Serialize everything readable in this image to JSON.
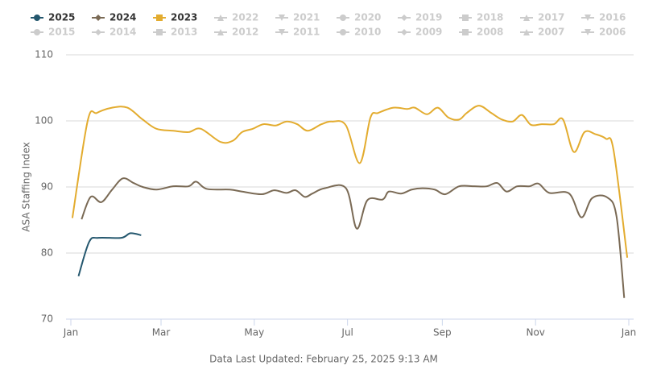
{
  "chart_data": {
    "type": "line",
    "y_label": "ASA Staffing Index",
    "footnote": "Data Last Updated: February 25, 2025 9:13 AM",
    "xlim": [
      0,
      365
    ],
    "xticks": [
      {
        "value": 0,
        "label": "Jan"
      },
      {
        "value": 59,
        "label": "Mar"
      },
      {
        "value": 120,
        "label": "May"
      },
      {
        "value": 181,
        "label": "Jul"
      },
      {
        "value": 243,
        "label": "Sep"
      },
      {
        "value": 304,
        "label": "Nov"
      },
      {
        "value": 365,
        "label": "Jan"
      }
    ],
    "ylim": [
      70,
      110
    ],
    "yticks": [
      70,
      80,
      90,
      100,
      110
    ],
    "grid": true,
    "legend": "top-left",
    "series": [
      {
        "name": "2025",
        "color": "#24576e",
        "symbol": "circle",
        "x": [
          5,
          12,
          18,
          33,
          39,
          46
        ],
        "values": [
          76.5,
          81.7,
          82.3,
          82.3,
          83,
          82.7
        ]
      },
      {
        "name": "2024",
        "color": "#7a6a55",
        "symbol": "diamond",
        "x": [
          7,
          13,
          20,
          27,
          34,
          41,
          47,
          56,
          67,
          77,
          82,
          89,
          104,
          112,
          125,
          133,
          141,
          147,
          153,
          158,
          166,
          180,
          187,
          194,
          204,
          208,
          216,
          223,
          230,
          238,
          245,
          254,
          264,
          272,
          279,
          285,
          292,
          300,
          306,
          313,
          326,
          334,
          341,
          351,
          357,
          362
        ],
        "values": [
          85.1,
          88.5,
          87.7,
          89.6,
          91.3,
          90.6,
          90,
          89.6,
          90.1,
          90.1,
          90.8,
          89.7,
          89.6,
          89.3,
          88.9,
          89.5,
          89.1,
          89.5,
          88.5,
          89,
          89.8,
          89.8,
          83.7,
          88,
          88.1,
          89.3,
          89,
          89.6,
          89.8,
          89.6,
          88.9,
          90.1,
          90.1,
          90.1,
          90.6,
          89.3,
          90.1,
          90.1,
          90.5,
          89.1,
          89,
          85.4,
          88.3,
          88.4,
          85.5,
          73.2
        ]
      },
      {
        "name": "2023",
        "color": "#e3ac2f",
        "symbol": "square",
        "x": [
          1,
          11,
          17,
          27,
          37,
          47,
          56,
          67,
          77,
          85,
          98,
          106,
          112,
          119,
          126,
          134,
          141,
          148,
          155,
          164,
          171,
          180,
          189,
          196,
          201,
          211,
          220,
          225,
          233,
          240,
          247,
          254,
          259,
          267,
          275,
          282,
          289,
          295,
          301,
          308,
          316,
          322,
          329,
          336,
          343,
          350,
          355,
          364
        ],
        "values": [
          85.3,
          100,
          101.2,
          102,
          102,
          100.2,
          98.8,
          98.5,
          98.3,
          98.8,
          96.8,
          97,
          98.3,
          98.8,
          99.5,
          99.3,
          99.9,
          99.5,
          98.5,
          99.5,
          99.9,
          99.3,
          93.6,
          100.5,
          101.2,
          102,
          101.8,
          102,
          101,
          102,
          100.5,
          100.2,
          101.2,
          102.3,
          101.2,
          100.2,
          99.9,
          100.9,
          99.4,
          99.5,
          99.5,
          100.2,
          95.3,
          98.3,
          98,
          97.3,
          95.6,
          79.3
        ]
      }
    ],
    "hidden_series": [
      {
        "name": "2022",
        "symbol": "triangle"
      },
      {
        "name": "2021",
        "symbol": "triangle-down"
      },
      {
        "name": "2020",
        "symbol": "circle"
      },
      {
        "name": "2019",
        "symbol": "diamond"
      },
      {
        "name": "2018",
        "symbol": "square"
      },
      {
        "name": "2017",
        "symbol": "triangle"
      },
      {
        "name": "2016",
        "symbol": "triangle-down"
      },
      {
        "name": "2015",
        "symbol": "circle"
      },
      {
        "name": "2014",
        "symbol": "diamond"
      },
      {
        "name": "2013",
        "symbol": "square"
      },
      {
        "name": "2012",
        "symbol": "triangle"
      },
      {
        "name": "2011",
        "symbol": "triangle-down"
      },
      {
        "name": "2010",
        "symbol": "circle"
      },
      {
        "name": "2009",
        "symbol": "diamond"
      },
      {
        "name": "2008",
        "symbol": "square"
      },
      {
        "name": "2007",
        "symbol": "triangle"
      },
      {
        "name": "2006",
        "symbol": "triangle-down"
      }
    ],
    "hidden_color": "#cccccc"
  }
}
